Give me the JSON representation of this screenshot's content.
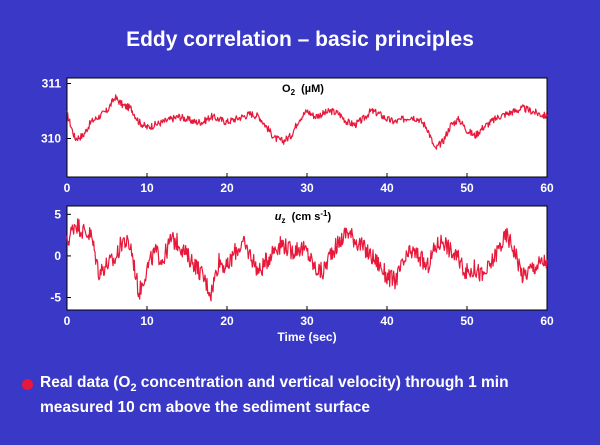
{
  "slide": {
    "title": "Eddy correlation – basic principles",
    "bullet_line1_pre": "Real data (O",
    "bullet_line1_sub": "2",
    "bullet_line1_post": " concentration  and vertical velocity) through 1 min",
    "bullet_line2": "measured 10 cm above the sediment surface",
    "colors": {
      "background": "#3a38c6",
      "plot_bg": "#ffffff",
      "trace": "#e8183a",
      "text": "#ffffff"
    }
  },
  "chart_data": [
    {
      "type": "line",
      "title": "O2  (µM)",
      "label_main": "O",
      "label_sub": "2",
      "label_rest": "  (µM)",
      "xlabel": "",
      "ylabel": "",
      "xlim": [
        0,
        60
      ],
      "ylim": [
        309.3,
        311.1
      ],
      "xticks": [
        0,
        10,
        20,
        30,
        40,
        50,
        60
      ],
      "yticks": [
        310,
        311
      ],
      "series": [
        {
          "name": "O2",
          "x": [
            0,
            1,
            2,
            3,
            4,
            5,
            6,
            7,
            8,
            9,
            10,
            11,
            12,
            13,
            14,
            15,
            16,
            17,
            18,
            19,
            20,
            21,
            22,
            23,
            24,
            25,
            26,
            27,
            28,
            29,
            30,
            31,
            32,
            33,
            34,
            35,
            36,
            37,
            38,
            39,
            40,
            41,
            42,
            43,
            44,
            45,
            46,
            47,
            48,
            49,
            50,
            51,
            52,
            53,
            54,
            55,
            56,
            57,
            58,
            59,
            60
          ],
          "values": [
            310.45,
            310.0,
            310.05,
            310.3,
            310.4,
            310.5,
            310.75,
            310.6,
            310.55,
            310.3,
            310.2,
            310.25,
            310.3,
            310.35,
            310.4,
            310.35,
            310.3,
            310.3,
            310.4,
            310.35,
            310.3,
            310.35,
            310.4,
            310.45,
            310.4,
            310.2,
            310.0,
            309.95,
            310.05,
            310.35,
            310.5,
            310.4,
            310.45,
            310.5,
            310.45,
            310.3,
            310.25,
            310.35,
            310.5,
            310.45,
            310.35,
            310.3,
            310.35,
            310.4,
            310.35,
            310.2,
            309.8,
            309.95,
            310.25,
            310.35,
            310.15,
            310.05,
            310.2,
            310.3,
            310.4,
            310.45,
            310.5,
            310.55,
            310.5,
            310.45,
            310.4
          ]
        }
      ]
    },
    {
      "type": "line",
      "title": "uz  (cm s-1)",
      "label_main": "u",
      "label_sub": "z",
      "label_rest": "  (cm s",
      "label_sup": "-1",
      "label_close": ")",
      "xlabel": "Time  (sec)",
      "ylabel": "",
      "xlim": [
        0,
        60
      ],
      "ylim": [
        -6.5,
        6
      ],
      "xticks": [
        0,
        10,
        20,
        30,
        40,
        50,
        60
      ],
      "yticks": [
        -5,
        0,
        5
      ],
      "series": [
        {
          "name": "uz",
          "x": [
            0,
            1,
            2,
            3,
            4,
            5,
            6,
            7,
            8,
            9,
            10,
            11,
            12,
            13,
            14,
            15,
            16,
            17,
            18,
            19,
            20,
            21,
            22,
            23,
            24,
            25,
            26,
            27,
            28,
            29,
            30,
            31,
            32,
            33,
            34,
            35,
            36,
            37,
            38,
            39,
            40,
            41,
            42,
            43,
            44,
            45,
            46,
            47,
            48,
            49,
            50,
            51,
            52,
            53,
            54,
            55,
            56,
            57,
            58,
            59,
            60
          ],
          "values": [
            1.5,
            4.0,
            3.0,
            2.5,
            -2.0,
            -1.0,
            -0.5,
            2.0,
            1.0,
            -4.5,
            -1.5,
            0.5,
            -0.5,
            2.0,
            1.5,
            0.0,
            -1.0,
            -2.5,
            -4.5,
            -0.5,
            -1.5,
            0.5,
            1.5,
            0.0,
            -2.0,
            -0.5,
            1.0,
            1.5,
            0.5,
            1.0,
            0.5,
            -1.5,
            -2.0,
            0.5,
            1.5,
            3.0,
            2.0,
            1.0,
            0.0,
            -1.0,
            -2.5,
            -3.0,
            -1.0,
            0.5,
            0.0,
            -1.5,
            1.0,
            2.0,
            0.5,
            -0.5,
            -2.0,
            -1.5,
            -2.5,
            -1.0,
            1.0,
            2.5,
            0.5,
            -2.5,
            -1.5,
            -1.0,
            -0.5
          ]
        }
      ]
    }
  ]
}
